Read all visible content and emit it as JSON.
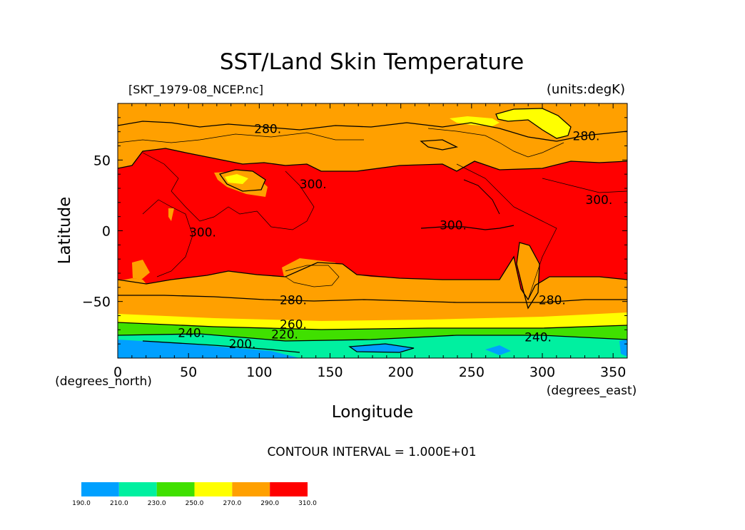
{
  "chart_data": {
    "type": "heatmap",
    "title": "SST/Land Skin Temperature",
    "source_file": "[SKT_1979-08_NCEP.nc]",
    "units": "(units:degK)",
    "xlabel": "Longitude",
    "ylabel": "Latitude",
    "xunit": "(degrees_east)",
    "yunit": "(degrees_north)",
    "xlim": [
      0,
      360
    ],
    "ylim": [
      -90,
      90
    ],
    "xticks": [
      "0",
      "50",
      "100",
      "150",
      "200",
      "250",
      "300",
      "350"
    ],
    "xtick_values": [
      0,
      50,
      100,
      150,
      200,
      250,
      300,
      350
    ],
    "yticks": [
      "50",
      "0",
      "−50"
    ],
    "ytick_values": [
      50,
      0,
      -50
    ],
    "contour_interval": "CONTOUR INTERVAL = 1.000E+01",
    "contour_labels": [
      {
        "text": "280.",
        "lon": 106,
        "lat": 72
      },
      {
        "text": "280.",
        "lon": 331,
        "lat": 67
      },
      {
        "text": "300.",
        "lon": 138,
        "lat": 33
      },
      {
        "text": "300.",
        "lon": 237,
        "lat": 4
      },
      {
        "text": "300.",
        "lon": 340,
        "lat": 22
      },
      {
        "text": "300.",
        "lon": 60,
        "lat": -1
      },
      {
        "text": "280.",
        "lon": 124,
        "lat": -49
      },
      {
        "text": "280.",
        "lon": 307,
        "lat": -49
      },
      {
        "text": "260.",
        "lon": 124,
        "lat": -66
      },
      {
        "text": "240.",
        "lon": 52,
        "lat": -72
      },
      {
        "text": "220.",
        "lon": 118,
        "lat": -73
      },
      {
        "text": "200.",
        "lon": 88,
        "lat": -80
      },
      {
        "text": "240.",
        "lon": 297,
        "lat": -75
      }
    ],
    "colorbar": {
      "boundaries": [
        "190.0",
        "210.0",
        "230.0",
        "250.0",
        "270.0",
        "290.0",
        "310.0"
      ],
      "colors": [
        "#00a0ff",
        "#00f0a0",
        "#40e000",
        "#ffff00",
        "#ffa000",
        "#ff0000"
      ]
    }
  }
}
